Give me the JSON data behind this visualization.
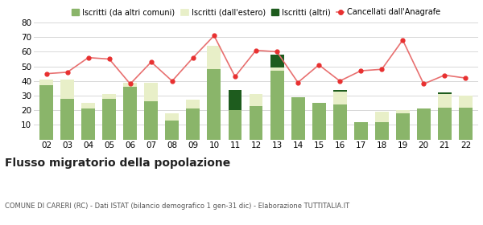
{
  "years": [
    "02",
    "03",
    "04",
    "05",
    "06",
    "07",
    "08",
    "09",
    "10",
    "11",
    "12",
    "13",
    "14",
    "15",
    "16",
    "17",
    "18",
    "19",
    "20",
    "21",
    "22"
  ],
  "iscritti_comuni": [
    37,
    28,
    21,
    28,
    36,
    26,
    13,
    21,
    48,
    20,
    23,
    47,
    29,
    25,
    24,
    12,
    12,
    18,
    21,
    22,
    22
  ],
  "iscritti_estero": [
    4,
    13,
    4,
    3,
    3,
    13,
    5,
    6,
    16,
    0,
    8,
    2,
    0,
    0,
    9,
    0,
    7,
    2,
    0,
    9,
    8
  ],
  "iscritti_altri": [
    0,
    0,
    0,
    0,
    0,
    0,
    0,
    0,
    0,
    14,
    0,
    9,
    0,
    0,
    1,
    0,
    0,
    0,
    0,
    1,
    0
  ],
  "cancellati": [
    45,
    46,
    56,
    55,
    38,
    53,
    40,
    56,
    71,
    43,
    61,
    60,
    39,
    51,
    40,
    47,
    48,
    68,
    38,
    44,
    42
  ],
  "color_comuni": "#8ab56a",
  "color_estero": "#e8efc8",
  "color_altri": "#1e5c1e",
  "color_cancellati": "#e83030",
  "color_line": "#e87070",
  "background": "#ffffff",
  "grid_color": "#d8d8d8",
  "ylim": [
    0,
    80
  ],
  "yticks": [
    0,
    10,
    20,
    30,
    40,
    50,
    60,
    70,
    80
  ],
  "title": "Flusso migratorio della popolazione",
  "subtitle": "COMUNE DI CARERI (RC) - Dati ISTAT (bilancio demografico 1 gen-31 dic) - Elaborazione TUTTITALIA.IT",
  "legend_labels": [
    "Iscritti (da altri comuni)",
    "Iscritti (dall'estero)",
    "Iscritti (altri)",
    "Cancellati dall'Anagrafe"
  ]
}
